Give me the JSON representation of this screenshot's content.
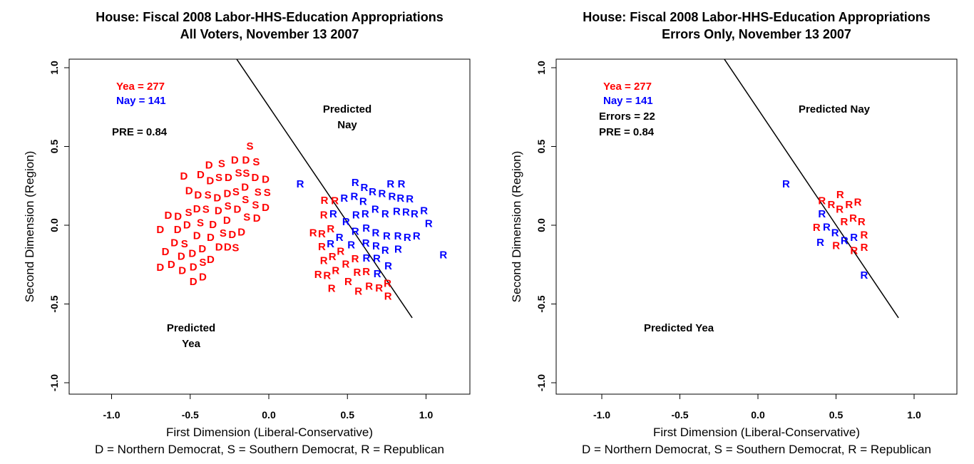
{
  "colors": {
    "yea": "#ff0000",
    "nay": "#0000ff",
    "line": "#000000"
  },
  "caption": "D = Northern Democrat, S = Southern Democrat, R = Republican",
  "chart_data": [
    {
      "type": "scatter",
      "title": [
        "House: Fiscal 2008 Labor-HHS-Education Appropriations",
        "All Voters, November 13 2007"
      ],
      "xlabel": "First Dimension (Liberal-Conservative)",
      "ylabel": "Second Dimension (Region)",
      "xlim": [
        -1.27,
        1.27
      ],
      "ylim": [
        -1.07,
        1.07
      ],
      "xticks": [
        -1.0,
        -0.5,
        0.0,
        0.5,
        1.0
      ],
      "xtick_labels": [
        "-1.0",
        "-0.5",
        "0.0",
        "0.5",
        "1.0"
      ],
      "yticks": [
        -1.0,
        -0.5,
        0.0,
        0.5,
        1.0
      ],
      "ytick_labels": [
        "-1.0",
        "-0.5",
        "0.0",
        "0.5",
        "1.0"
      ],
      "annotations": {
        "yea": "Yea =  277",
        "nay": "Nay =  141",
        "pre": "PRE =  0.84",
        "pred_nay": [
          "Predicted",
          "Nay"
        ],
        "pred_yea": [
          "Predicted",
          "Yea"
        ]
      },
      "cutting_line": [
        [
          -0.204,
          1.054
        ],
        [
          0.912,
          -0.588
        ]
      ],
      "points": [
        [
          -0.54,
          0.31,
          "D",
          "yea"
        ],
        [
          -0.38,
          0.38,
          "D",
          "yea"
        ],
        [
          -0.3,
          0.39,
          "S",
          "yea"
        ],
        [
          -0.12,
          0.5,
          "S",
          "yea"
        ],
        [
          -0.15,
          0.44,
          "D",
          "yea"
        ],
        [
          -0.08,
          0.4,
          "S",
          "yea"
        ],
        [
          -0.02,
          0.29,
          "D",
          "yea"
        ],
        [
          -0.01,
          0.22,
          "S",
          "yea"
        ],
        [
          -0.02,
          0.11,
          "D",
          "yea"
        ],
        [
          -0.64,
          0.06,
          "D",
          "yea"
        ],
        [
          -0.69,
          -0.03,
          "D",
          "yea"
        ],
        [
          -0.69,
          -0.27,
          "D",
          "yea"
        ],
        [
          -0.62,
          -0.25,
          "D",
          "yea"
        ],
        [
          -0.48,
          -0.36,
          "D",
          "yea"
        ],
        [
          -0.55,
          -0.29,
          "D",
          "yea"
        ],
        [
          -0.37,
          -0.22,
          "D",
          "yea"
        ],
        [
          -0.51,
          0.08,
          "S",
          "yea"
        ],
        [
          -0.42,
          0.32,
          "D",
          "yea"
        ],
        [
          -0.34,
          0.32,
          "S",
          "yea"
        ],
        [
          -0.27,
          0.3,
          "D",
          "yea"
        ],
        [
          -0.22,
          0.33,
          "S",
          "yea"
        ],
        [
          -0.18,
          0.37,
          "D",
          "yea"
        ],
        [
          -0.13,
          0.35,
          "S",
          "yea"
        ],
        [
          -0.1,
          0.3,
          "D",
          "yea"
        ],
        [
          -0.06,
          0.25,
          "S",
          "yea"
        ],
        [
          -0.16,
          0.25,
          "D",
          "yea"
        ],
        [
          -0.2,
          0.22,
          "S",
          "yea"
        ],
        [
          -0.25,
          0.2,
          "D",
          "yea"
        ],
        [
          -0.3,
          0.18,
          "D",
          "yea"
        ],
        [
          -0.36,
          0.2,
          "S",
          "yea"
        ],
        [
          -0.45,
          0.19,
          "D",
          "yea"
        ],
        [
          -0.48,
          0.12,
          "D",
          "yea"
        ],
        [
          -0.4,
          0.1,
          "S",
          "yea"
        ],
        [
          -0.33,
          0.1,
          "D",
          "yea"
        ],
        [
          -0.26,
          0.12,
          "S",
          "yea"
        ],
        [
          -0.2,
          0.1,
          "D",
          "yea"
        ],
        [
          -0.18,
          0.05,
          "S",
          "yea"
        ],
        [
          -0.28,
          0.03,
          "D",
          "yea"
        ],
        [
          -0.36,
          0.03,
          "D",
          "yea"
        ],
        [
          -0.44,
          0.04,
          "S",
          "yea"
        ],
        [
          -0.52,
          0.0,
          "D",
          "yea"
        ],
        [
          -0.58,
          -0.03,
          "D",
          "yea"
        ],
        [
          -0.6,
          -0.1,
          "D",
          "yea"
        ],
        [
          -0.55,
          -0.12,
          "S",
          "yea"
        ],
        [
          -0.48,
          -0.05,
          "D",
          "yea"
        ],
        [
          -0.42,
          -0.03,
          "D",
          "yea"
        ],
        [
          -0.35,
          -0.02,
          "S",
          "yea"
        ],
        [
          -0.3,
          -0.06,
          "D",
          "yea"
        ],
        [
          -0.26,
          -0.01,
          "D",
          "yea"
        ],
        [
          -0.38,
          -0.09,
          "D",
          "yea"
        ],
        [
          -0.45,
          -0.12,
          "D",
          "yea"
        ],
        [
          -0.5,
          -0.18,
          "D",
          "yea"
        ],
        [
          -0.57,
          -0.2,
          "D",
          "yea"
        ],
        [
          -0.42,
          -0.17,
          "S",
          "yea"
        ],
        [
          -0.33,
          -0.14,
          "D",
          "yea"
        ],
        [
          -0.43,
          -0.24,
          "D",
          "yea"
        ],
        [
          -0.63,
          -0.16,
          "D",
          "yea"
        ],
        [
          -0.55,
          -0.05,
          "D",
          "yea"
        ],
        [
          -0.4,
          0.25,
          "D",
          "yea"
        ],
        [
          -0.23,
          0.27,
          "S",
          "yea"
        ],
        [
          -0.08,
          0.18,
          "S",
          "yea"
        ],
        [
          -0.14,
          0.16,
          "D",
          "yea"
        ],
        [
          -0.48,
          0.25,
          "D",
          "yea"
        ],
        [
          -0.32,
          -0.09,
          "S",
          "yea"
        ],
        [
          -0.47,
          -0.28,
          "D",
          "yea"
        ],
        [
          0.2,
          0.26,
          "R",
          "nay"
        ],
        [
          1.11,
          -0.19,
          "R",
          "nay"
        ],
        [
          0.55,
          0.27,
          "R",
          "nay"
        ],
        [
          0.76,
          -0.26,
          "R",
          "nay"
        ],
        [
          0.69,
          -0.31,
          "R",
          "nay"
        ],
        [
          0.48,
          0.17,
          "R",
          "nay"
        ],
        [
          0.53,
          0.18,
          "R",
          "nay"
        ],
        [
          0.6,
          0.15,
          "R",
          "nay"
        ],
        [
          0.66,
          0.21,
          "R",
          "nay"
        ],
        [
          0.68,
          0.2,
          "R",
          "nay"
        ],
        [
          0.73,
          0.18,
          "R",
          "nay"
        ],
        [
          0.77,
          0.17,
          "R",
          "nay"
        ],
        [
          0.8,
          0.14,
          "R",
          "nay"
        ],
        [
          0.85,
          0.1,
          "R",
          "nay"
        ],
        [
          0.9,
          0.07,
          "R",
          "nay"
        ],
        [
          0.96,
          0.09,
          "R",
          "nay"
        ],
        [
          0.99,
          0.04,
          "R",
          "nay"
        ],
        [
          0.94,
          -0.07,
          "R",
          "nay"
        ],
        [
          0.89,
          -0.07,
          "R",
          "nay"
        ],
        [
          0.83,
          -0.06,
          "R",
          "nay"
        ],
        [
          0.75,
          -0.07,
          "R",
          "nay"
        ],
        [
          0.68,
          -0.05,
          "R",
          "nay"
        ],
        [
          0.62,
          -0.02,
          "R",
          "nay"
        ],
        [
          0.55,
          -0.04,
          "R",
          "nay"
        ],
        [
          0.5,
          0.03,
          "R",
          "nay"
        ],
        [
          0.55,
          0.09,
          "R",
          "nay"
        ],
        [
          0.6,
          0.07,
          "R",
          "nay"
        ],
        [
          0.65,
          0.1,
          "R",
          "nay"
        ],
        [
          0.7,
          0.07,
          "R",
          "nay"
        ],
        [
          0.75,
          0.03,
          "R",
          "nay"
        ],
        [
          0.8,
          0.01,
          "R",
          "nay"
        ],
        [
          0.72,
          0.12,
          "R",
          "nay"
        ],
        [
          0.58,
          0.12,
          "R",
          "nay"
        ],
        [
          0.64,
          0.02,
          "R",
          "nay"
        ],
        [
          0.86,
          0.02,
          "R",
          "nay"
        ],
        [
          0.78,
          0.08,
          "R",
          "nay"
        ],
        [
          0.52,
          -0.1,
          "R",
          "nay"
        ],
        [
          0.45,
          -0.08,
          "R",
          "nay"
        ],
        [
          0.42,
          -0.11,
          "R",
          "nay"
        ],
        [
          0.7,
          -0.16,
          "R",
          "nay"
        ],
        [
          0.75,
          -0.14,
          "R",
          "nay"
        ],
        [
          0.63,
          -0.17,
          "R",
          "nay"
        ],
        [
          0.41,
          0.07,
          "R",
          "nay"
        ],
        [
          0.4,
          0.09,
          "R",
          "yea"
        ],
        [
          0.38,
          0.03,
          "R",
          "yea"
        ],
        [
          0.41,
          -0.02,
          "R",
          "yea"
        ],
        [
          0.35,
          -0.05,
          "R",
          "yea"
        ],
        [
          0.43,
          -0.05,
          "R",
          "yea"
        ],
        [
          0.46,
          -0.03,
          "R",
          "yea"
        ],
        [
          0.49,
          -0.06,
          "R",
          "yea"
        ],
        [
          0.53,
          -0.05,
          "R",
          "yea"
        ],
        [
          0.45,
          -0.12,
          "R",
          "yea"
        ],
        [
          0.48,
          -0.15,
          "R",
          "yea"
        ],
        [
          0.4,
          -0.2,
          "R",
          "yea"
        ],
        [
          0.43,
          -0.23,
          "R",
          "yea"
        ],
        [
          0.57,
          -0.17,
          "R",
          "yea"
        ],
        [
          0.58,
          -0.22,
          "R",
          "yea"
        ],
        [
          0.62,
          -0.24,
          "R",
          "yea"
        ],
        [
          0.4,
          -0.27,
          "R",
          "yea"
        ],
        [
          0.4,
          -0.39,
          "R",
          "yea"
        ],
        [
          0.57,
          -0.42,
          "R",
          "yea"
        ],
        [
          0.56,
          -0.35,
          "R",
          "yea"
        ],
        [
          0.62,
          -0.35,
          "R",
          "yea"
        ],
        [
          0.66,
          -0.37,
          "R",
          "yea"
        ],
        [
          0.69,
          -0.39,
          "R",
          "yea"
        ],
        [
          0.52,
          0.01,
          "R",
          "yea"
        ],
        [
          0.44,
          0.11,
          "R",
          "yea"
        ]
      ]
    },
    {
      "type": "scatter",
      "title": [
        "House: Fiscal 2008 Labor-HHS-Education Appropriations",
        "Errors Only, November 13 2007"
      ],
      "xlabel": "First Dimension (Liberal-Conservative)",
      "ylabel": "Second Dimension (Region)",
      "xlim": [
        -1.27,
        1.27
      ],
      "ylim": [
        -1.07,
        1.07
      ],
      "xticks": [
        -1.0,
        -0.5,
        0.0,
        0.5,
        1.0
      ],
      "xtick_labels": [
        "-1.0",
        "-0.5",
        "0.0",
        "0.5",
        "1.0"
      ],
      "yticks": [
        -1.0,
        -0.5,
        0.0,
        0.5,
        1.0
      ],
      "ytick_labels": [
        "-1.0",
        "-0.5",
        "0.0",
        "0.5",
        "1.0"
      ],
      "annotations": {
        "yea": "Yea =  277",
        "nay": "Nay =  141",
        "errors": "Errors =  22",
        "pre": "PRE =  0.84",
        "pred_nay": [
          "Predicted Nay"
        ],
        "pred_yea": [
          "Predicted Yea"
        ]
      },
      "cutting_line": [
        [
          -0.215,
          1.054
        ],
        [
          0.9,
          -0.588
        ]
      ],
      "points": [
        [
          0.18,
          0.26,
          "R",
          "nay"
        ],
        [
          0.41,
          0.07,
          "R",
          "nay"
        ],
        [
          0.44,
          0.0,
          "R",
          "nay"
        ],
        [
          0.48,
          -0.05,
          "R",
          "nay"
        ],
        [
          0.54,
          -0.1,
          "R",
          "nay"
        ],
        [
          0.4,
          -0.11,
          "R",
          "nay"
        ],
        [
          0.68,
          -0.32,
          "R",
          "nay"
        ],
        [
          0.56,
          -0.08,
          "R",
          "nay"
        ],
        [
          0.47,
          0.13,
          "R",
          "yea"
        ],
        [
          0.51,
          0.1,
          "R",
          "yea"
        ],
        [
          0.57,
          0.13,
          "R",
          "yea"
        ],
        [
          0.47,
          0.07,
          "R",
          "yea"
        ],
        [
          0.5,
          0.06,
          "R",
          "yea"
        ],
        [
          0.54,
          0.02,
          "R",
          "yea"
        ],
        [
          0.63,
          0.0,
          "R",
          "yea"
        ],
        [
          0.56,
          -0.04,
          "R",
          "yea"
        ],
        [
          0.57,
          -0.05,
          "R",
          "yea"
        ],
        [
          0.46,
          0.09,
          "R",
          "yea"
        ],
        [
          0.49,
          0.06,
          "R",
          "yea"
        ],
        [
          0.49,
          0.12,
          "R",
          "yea"
        ],
        [
          0.53,
          0.09,
          "R",
          "yea"
        ],
        [
          0.58,
          -0.03,
          "R",
          "yea"
        ]
      ]
    }
  ]
}
